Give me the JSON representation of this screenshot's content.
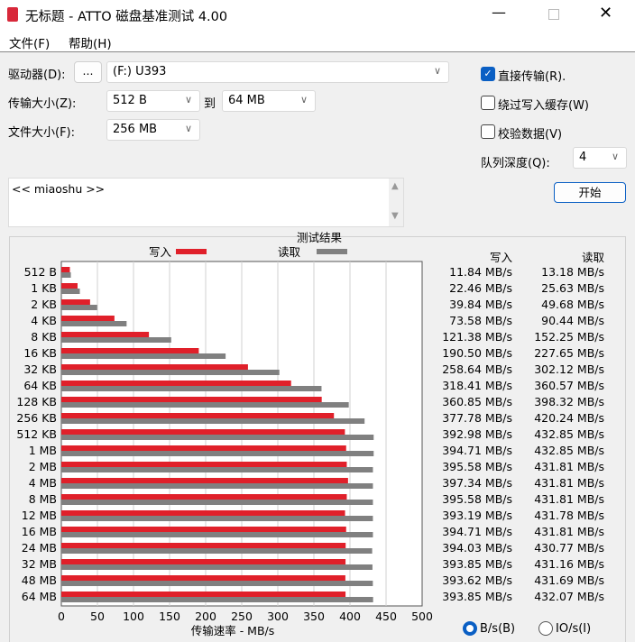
{
  "window": {
    "title": "无标题 - ATTO 磁盘基准测试 4.00",
    "app_icon": "disk-icon"
  },
  "menu": [
    "文件(F)",
    "帮助(H)"
  ],
  "drive": {
    "label": "驱动器(D):",
    "browse": "...",
    "value": "(F:) U393"
  },
  "transfer": {
    "label": "传输大小(Z):",
    "from": "512 B",
    "to_label": "到",
    "to": "64 MB"
  },
  "filesize": {
    "label": "文件大小(F):",
    "value": "256 MB"
  },
  "options": {
    "direct": {
      "label": "直接传输(R).",
      "checked": true
    },
    "bypass": {
      "label": "绕过写入缓存(W)",
      "checked": false
    },
    "verify": {
      "label": "校验数据(V)",
      "checked": false
    }
  },
  "queue": {
    "label": "队列深度(Q):",
    "value": "4"
  },
  "start": "开始",
  "description": "<< miaoshu >>",
  "units": {
    "bps": "B/s(B)",
    "iops": "IO/s(I)",
    "selected": "bps"
  },
  "chart_data": {
    "type": "bar",
    "orientation": "horizontal",
    "title": "测试结果",
    "xlabel": "传输速率 - MB/s",
    "xlim": [
      0,
      500
    ],
    "grid": true,
    "xticks": [
      "0",
      "50",
      "100",
      "150",
      "200",
      "250",
      "300",
      "350",
      "400",
      "450",
      "500"
    ],
    "categories": [
      "512 B",
      "1 KB",
      "2 KB",
      "4 KB",
      "8 KB",
      "16 KB",
      "32 KB",
      "64 KB",
      "128 KB",
      "256 KB",
      "512 KB",
      "1 MB",
      "2 MB",
      "4 MB",
      "8 MB",
      "12 MB",
      "16 MB",
      "24 MB",
      "32 MB",
      "48 MB",
      "64 MB"
    ],
    "series": [
      {
        "name": "写入",
        "color": "#e0202a",
        "values": [
          11.84,
          22.46,
          39.84,
          73.58,
          121.38,
          190.5,
          258.64,
          318.41,
          360.85,
          377.78,
          392.98,
          394.71,
          395.58,
          397.34,
          395.58,
          393.19,
          394.71,
          394.03,
          393.85,
          393.62,
          393.85
        ]
      },
      {
        "name": "读取",
        "color": "#808080",
        "values": [
          13.18,
          25.63,
          49.68,
          90.44,
          152.25,
          227.65,
          302.12,
          360.57,
          398.32,
          420.24,
          432.85,
          432.85,
          431.81,
          431.81,
          431.81,
          431.78,
          431.81,
          430.77,
          431.16,
          431.69,
          432.07
        ]
      }
    ],
    "table": {
      "write_header": "写入",
      "read_header": "读取",
      "write": [
        "11.84 MB/s",
        "22.46 MB/s",
        "39.84 MB/s",
        "73.58 MB/s",
        "121.38 MB/s",
        "190.50 MB/s",
        "258.64 MB/s",
        "318.41 MB/s",
        "360.85 MB/s",
        "377.78 MB/s",
        "392.98 MB/s",
        "394.71 MB/s",
        "395.58 MB/s",
        "397.34 MB/s",
        "395.58 MB/s",
        "393.19 MB/s",
        "394.71 MB/s",
        "394.03 MB/s",
        "393.85 MB/s",
        "393.62 MB/s",
        "393.85 MB/s"
      ],
      "read": [
        "13.18 MB/s",
        "25.63 MB/s",
        "49.68 MB/s",
        "90.44 MB/s",
        "152.25 MB/s",
        "227.65 MB/s",
        "302.12 MB/s",
        "360.57 MB/s",
        "398.32 MB/s",
        "420.24 MB/s",
        "432.85 MB/s",
        "432.85 MB/s",
        "431.81 MB/s",
        "431.81 MB/s",
        "431.81 MB/s",
        "431.78 MB/s",
        "431.81 MB/s",
        "430.77 MB/s",
        "431.16 MB/s",
        "431.69 MB/s",
        "432.07 MB/s"
      ]
    }
  }
}
